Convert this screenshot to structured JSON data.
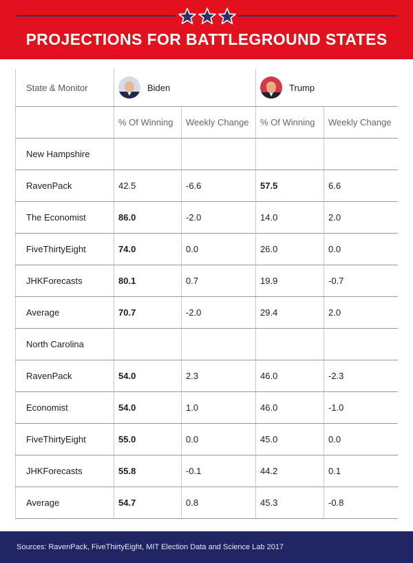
{
  "header": {
    "title": "PROJECTIONS FOR BATTLEGROUND STATES",
    "bg_color": "#e3111d",
    "star_color": "#2a3266"
  },
  "table": {
    "first_col_header": "State & Monitor",
    "candidates": [
      "Biden",
      "Trump"
    ],
    "subheaders": [
      "% Of Winning",
      "Weekly Change",
      "% Of Winning",
      "Weekly Change"
    ],
    "sections": [
      {
        "state": "New Hampshire",
        "rows": [
          {
            "monitor": "RavenPack",
            "biden_win": "42.5",
            "biden_change": "-6.6",
            "trump_win": "57.5",
            "trump_change": "6.6"
          },
          {
            "monitor": "The Economist",
            "biden_win": "86.0",
            "biden_change": "-2.0",
            "trump_win": "14.0",
            "trump_change": "2.0"
          },
          {
            "monitor": "FiveThirtyEight",
            "biden_win": "74.0",
            "biden_change": "0.0",
            "trump_win": "26.0",
            "trump_change": "0.0"
          },
          {
            "monitor": "JHKForecasts",
            "biden_win": "80.1",
            "biden_change": "0.7",
            "trump_win": "19.9",
            "trump_change": "-0.7"
          },
          {
            "monitor": "Average",
            "biden_win": "70.7",
            "biden_change": "-2.0",
            "trump_win": "29.4",
            "trump_change": "2.0"
          }
        ]
      },
      {
        "state": "North Carolina",
        "rows": [
          {
            "monitor": "RavenPack",
            "biden_win": "54.0",
            "biden_change": "2.3",
            "trump_win": "46.0",
            "trump_change": "-2.3"
          },
          {
            "monitor": "Economist",
            "biden_win": "54.0",
            "biden_change": "1.0",
            "trump_win": "46.0",
            "trump_change": "-1.0"
          },
          {
            "monitor": "FiveThirtyEight",
            "biden_win": "55.0",
            "biden_change": "0.0",
            "trump_win": "45.0",
            "trump_change": "0.0"
          },
          {
            "monitor": "JHKForecasts",
            "biden_win": "55.8",
            "biden_change": "-0.1",
            "trump_win": "44.2",
            "trump_change": "0.1"
          },
          {
            "monitor": "Average",
            "biden_win": "54.7",
            "biden_change": "0.8",
            "trump_win": "45.3",
            "trump_change": "-0.8"
          }
        ]
      }
    ]
  },
  "footer": {
    "sources": "Sources: RavenPack, FiveThirtyEight, MIT Election Data and Science Lab 2017",
    "bg_color": "#1e2562"
  },
  "colors": {
    "biden_highlight": "#263378",
    "trump_highlight": "#d8121d"
  }
}
